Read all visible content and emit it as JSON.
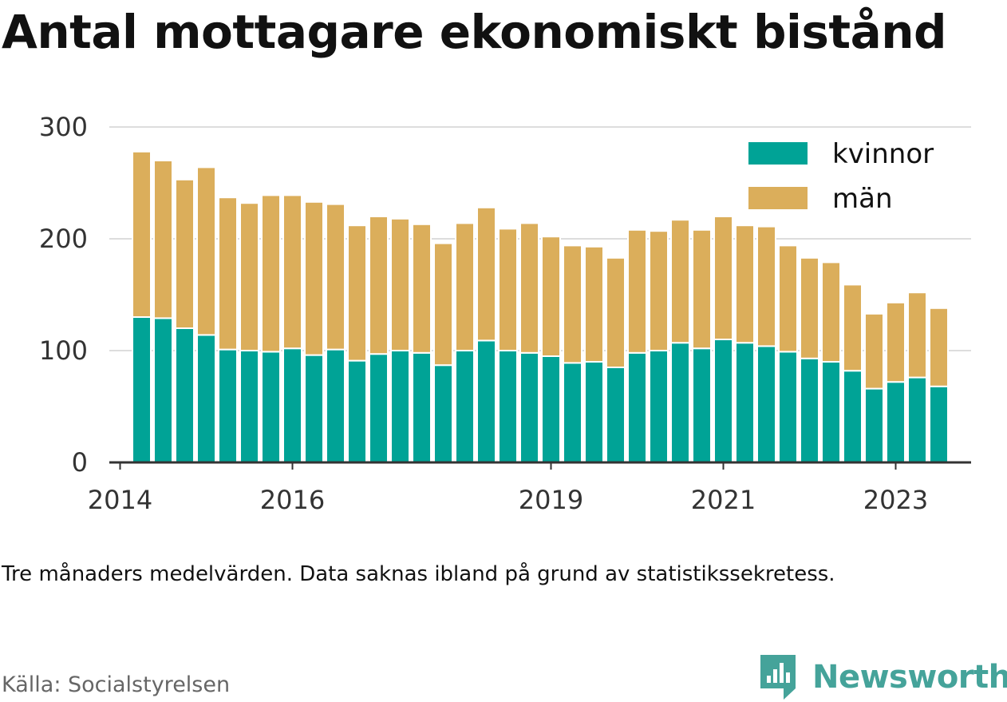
{
  "title": "Antal mottagare ekonomiskt bistånd",
  "note": "Tre månaders medelvärden. Data saknas ibland på grund av statistikssekretess.",
  "source": "Källa: Socialstyrelsen",
  "brand": {
    "name": "Newsworthy",
    "icon": "bar-chart-logo-icon"
  },
  "colors": {
    "kvinnor": "#00a396",
    "man": "#dbae5b",
    "grid": "#dddddd",
    "axis": "#333333"
  },
  "chart_data": {
    "type": "bar",
    "stacked": true,
    "x_unit": "quarter",
    "x": [
      "2014-Q2",
      "2014-Q3",
      "2014-Q4",
      "2015-Q1",
      "2015-Q2",
      "2015-Q3",
      "2015-Q4",
      "2016-Q1",
      "2016-Q2",
      "2016-Q3",
      "2016-Q4",
      "2017-Q1",
      "2017-Q2",
      "2017-Q3",
      "2017-Q4",
      "2018-Q1",
      "2018-Q2",
      "2018-Q3",
      "2018-Q4",
      "2019-Q1",
      "2019-Q2",
      "2019-Q3",
      "2019-Q4",
      "2020-Q1",
      "2020-Q2",
      "2020-Q3",
      "2020-Q4",
      "2021-Q1",
      "2021-Q2",
      "2021-Q3",
      "2021-Q4",
      "2022-Q1",
      "2022-Q2",
      "2022-Q3",
      "2022-Q4",
      "2023-Q1",
      "2023-Q2",
      "2023-Q3"
    ],
    "series": [
      {
        "name": "kvinnor",
        "color": "#00a396",
        "values": [
          130,
          129,
          120,
          114,
          101,
          100,
          99,
          102,
          96,
          101,
          91,
          97,
          100,
          98,
          87,
          100,
          109,
          100,
          98,
          95,
          89,
          90,
          85,
          98,
          100,
          107,
          102,
          110,
          107,
          104,
          99,
          93,
          90,
          82,
          66,
          72,
          76,
          68
        ]
      },
      {
        "name": "män",
        "color": "#dbae5b",
        "values": [
          148,
          141,
          133,
          150,
          136,
          132,
          140,
          137,
          137,
          130,
          121,
          123,
          118,
          115,
          109,
          114,
          119,
          109,
          116,
          107,
          105,
          103,
          98,
          110,
          107,
          110,
          106,
          110,
          105,
          107,
          95,
          90,
          89,
          77,
          67,
          71,
          76,
          70
        ]
      }
    ],
    "xlim": [
      "2014-Q1",
      "2023-Q4"
    ],
    "xticks": [
      "2014",
      "2016",
      "2019",
      "2021",
      "2023"
    ],
    "ylim": [
      0,
      300
    ],
    "yticks": [
      0,
      100,
      200,
      300
    ],
    "grid": "horizontal",
    "legend": "top-right",
    "xlabel": "",
    "ylabel": ""
  }
}
